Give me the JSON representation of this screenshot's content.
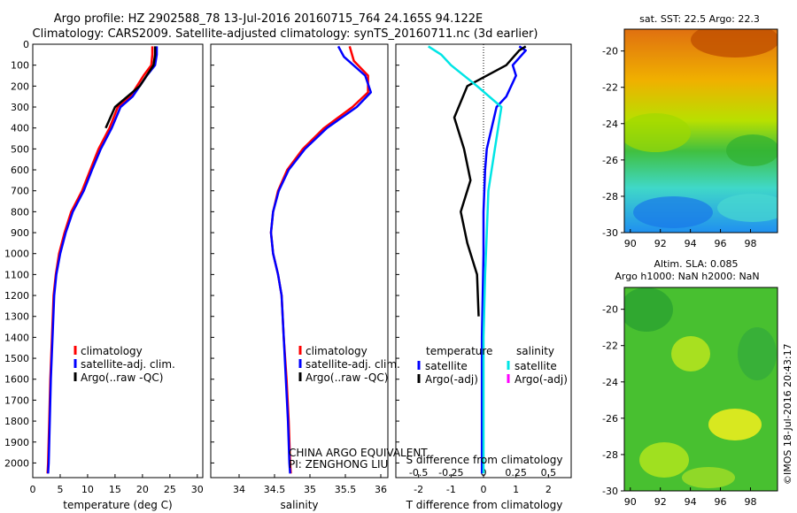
{
  "header": {
    "title_line1": "Argo profile: HZ 2902588_78 13-Jul-2016 20160715_764 24.165S 94.122E",
    "title_line2": "Climatology: CARS2009. Satellite-adjusted climatology: synTS_20160711.nc (3d earlier)"
  },
  "watermark": "CHINA ARGO EQUIVALENT",
  "pi_label": "PI: ZENGHONG LIU",
  "timestamp": "©IMOS 18-Jul-2016 20:43:17",
  "colors": {
    "climatology": "#ff0000",
    "satellite": "#0000ff",
    "argo": "#000000",
    "sat_salinity": "#00e5e5",
    "argo_salinity": "#ff00ff"
  },
  "chart_data": [
    {
      "id": "temperature",
      "type": "line",
      "xlabel": "temperature (deg C)",
      "ylabel": "",
      "xlim": [
        0,
        31
      ],
      "ylim": [
        2070,
        0
      ],
      "xticks": [
        0,
        5,
        10,
        15,
        20,
        25,
        30
      ],
      "yticks": [
        0,
        100,
        200,
        300,
        400,
        500,
        600,
        700,
        800,
        900,
        1000,
        1100,
        1200,
        1300,
        1400,
        1500,
        1600,
        1700,
        1800,
        1900,
        2000
      ],
      "legend": [
        "climatology",
        "satellite-adj. clim.",
        "Argo(..raw -QC)"
      ],
      "series": [
        {
          "name": "climatology",
          "color": "#ff0000",
          "points": [
            [
              21.8,
              10
            ],
            [
              21.8,
              50
            ],
            [
              21.6,
              100
            ],
            [
              20.2,
              150
            ],
            [
              17.8,
              250
            ],
            [
              15.5,
              300
            ],
            [
              14.0,
              400
            ],
            [
              12.0,
              500
            ],
            [
              10.5,
              600
            ],
            [
              9.0,
              700
            ],
            [
              7.0,
              800
            ],
            [
              5.8,
              900
            ],
            [
              4.8,
              1000
            ],
            [
              4.2,
              1100
            ],
            [
              3.8,
              1200
            ],
            [
              3.5,
              1400
            ],
            [
              3.2,
              1600
            ],
            [
              3.0,
              1800
            ],
            [
              2.8,
              2000
            ],
            [
              2.7,
              2050
            ]
          ]
        },
        {
          "name": "satellite-adj. clim.",
          "color": "#0000ff",
          "points": [
            [
              22.6,
              10
            ],
            [
              22.6,
              50
            ],
            [
              22.3,
              100
            ],
            [
              20.8,
              150
            ],
            [
              18.2,
              250
            ],
            [
              16.0,
              300
            ],
            [
              14.4,
              400
            ],
            [
              12.4,
              500
            ],
            [
              10.8,
              600
            ],
            [
              9.3,
              700
            ],
            [
              7.3,
              800
            ],
            [
              6.0,
              900
            ],
            [
              5.0,
              1000
            ],
            [
              4.3,
              1100
            ],
            [
              3.9,
              1200
            ],
            [
              3.6,
              1400
            ],
            [
              3.3,
              1600
            ],
            [
              3.1,
              1800
            ],
            [
              2.9,
              2000
            ],
            [
              2.8,
              2050
            ]
          ]
        },
        {
          "name": "Argo(..raw -QC)",
          "color": "#000000",
          "points": [
            [
              22.3,
              10
            ],
            [
              22.3,
              50
            ],
            [
              22.0,
              100
            ],
            [
              19.5,
              200
            ],
            [
              16.8,
              260
            ],
            [
              15.0,
              300
            ],
            [
              13.3,
              400
            ]
          ]
        }
      ]
    },
    {
      "id": "salinity",
      "type": "line",
      "xlabel": "salinity",
      "ylabel": "",
      "xlim": [
        33.6,
        36.1
      ],
      "ylim": [
        2070,
        0
      ],
      "xticks": [
        34,
        34.5,
        35,
        35.5,
        36
      ],
      "yticks": [],
      "legend": [
        "climatology",
        "satellite-adj. clim.",
        "Argo(..raw -QC)"
      ],
      "series": [
        {
          "name": "climatology",
          "color": "#ff0000",
          "points": [
            [
              35.56,
              10
            ],
            [
              35.62,
              80
            ],
            [
              35.82,
              150
            ],
            [
              35.82,
              230
            ],
            [
              35.6,
              300
            ],
            [
              35.2,
              400
            ],
            [
              34.9,
              500
            ],
            [
              34.68,
              600
            ],
            [
              34.55,
              700
            ],
            [
              34.48,
              800
            ],
            [
              34.45,
              900
            ],
            [
              34.48,
              1000
            ],
            [
              34.55,
              1100
            ],
            [
              34.6,
              1200
            ],
            [
              34.63,
              1400
            ],
            [
              34.67,
              1600
            ],
            [
              34.7,
              1800
            ],
            [
              34.72,
              2000
            ],
            [
              34.73,
              2050
            ]
          ]
        },
        {
          "name": "satellite-adj. clim.",
          "color": "#0000ff",
          "points": [
            [
              35.4,
              10
            ],
            [
              35.48,
              60
            ],
            [
              35.78,
              150
            ],
            [
              35.86,
              230
            ],
            [
              35.66,
              300
            ],
            [
              35.24,
              400
            ],
            [
              34.93,
              500
            ],
            [
              34.7,
              600
            ],
            [
              34.56,
              700
            ],
            [
              34.48,
              800
            ],
            [
              34.45,
              900
            ],
            [
              34.48,
              1000
            ],
            [
              34.55,
              1100
            ],
            [
              34.6,
              1200
            ],
            [
              34.63,
              1400
            ],
            [
              34.66,
              1600
            ],
            [
              34.69,
              1800
            ],
            [
              34.71,
              2000
            ],
            [
              34.72,
              2050
            ]
          ]
        }
      ]
    },
    {
      "id": "difference",
      "type": "line",
      "xlabel": "T difference from climatology",
      "xlabel_top": "S difference from climatology",
      "xlim": [
        -2.7,
        2.7
      ],
      "ylim": [
        2070,
        0
      ],
      "xticks": [
        -2,
        -1,
        0,
        1,
        2
      ],
      "xticks_top": [
        "-0.5",
        "-0.25",
        "0",
        "0.25",
        "0.5"
      ],
      "legend": {
        "temperature_title": "temperature",
        "salinity_title": "salinity",
        "items": [
          [
            "satellite",
            "#0000ff"
          ],
          [
            "Argo(-adj)",
            "#000000"
          ],
          [
            "satellite",
            "#00e5e5"
          ],
          [
            "Argo(-adj)",
            "#ff00ff"
          ]
        ]
      },
      "series": [
        {
          "name": "T satellite",
          "color": "#0000ff",
          "points": [
            [
              1.1,
              10
            ],
            [
              1.3,
              30
            ],
            [
              0.9,
              100
            ],
            [
              1.0,
              150
            ],
            [
              0.7,
              250
            ],
            [
              0.4,
              300
            ],
            [
              0.25,
              400
            ],
            [
              0.1,
              500
            ],
            [
              0.05,
              600
            ],
            [
              0.0,
              800
            ],
            [
              0.0,
              1000
            ],
            [
              -0.05,
              1400
            ],
            [
              -0.05,
              2050
            ]
          ]
        },
        {
          "name": "T Argo(-adj)",
          "color": "#000000",
          "points": [
            [
              1.3,
              10
            ],
            [
              1.1,
              30
            ],
            [
              0.7,
              100
            ],
            [
              -0.5,
              200
            ],
            [
              -0.9,
              350
            ],
            [
              -0.6,
              500
            ],
            [
              -0.4,
              650
            ],
            [
              -0.7,
              800
            ],
            [
              -0.5,
              950
            ],
            [
              -0.2,
              1100
            ],
            [
              -0.15,
              1300
            ]
          ]
        },
        {
          "name": "S satellite",
          "color": "#00e5e5",
          "points": [
            [
              -1.7,
              10
            ],
            [
              -1.3,
              50
            ],
            [
              -1.0,
              100
            ],
            [
              -0.2,
              200
            ],
            [
              0.55,
              300
            ],
            [
              0.35,
              500
            ],
            [
              0.15,
              700
            ],
            [
              0.1,
              900
            ],
            [
              0.05,
              1100
            ],
            [
              0.0,
              1400
            ],
            [
              0.0,
              2050
            ]
          ]
        }
      ]
    },
    {
      "id": "sst_map",
      "type": "heatmap",
      "title": "sat. SST: 22.5 Argo: 22.3",
      "xticks": [
        90,
        92,
        94,
        96,
        98
      ],
      "yticks": [
        -20,
        -22,
        -24,
        -26,
        -28,
        -30
      ]
    },
    {
      "id": "sla_map",
      "type": "heatmap",
      "title_line1": "Altim. SLA: 0.085",
      "title_line2": "Argo h1000: NaN h2000: NaN",
      "xticks": [
        90,
        92,
        94,
        96,
        98
      ],
      "yticks": [
        -20,
        -22,
        -24,
        -26,
        -28,
        -30
      ]
    }
  ]
}
